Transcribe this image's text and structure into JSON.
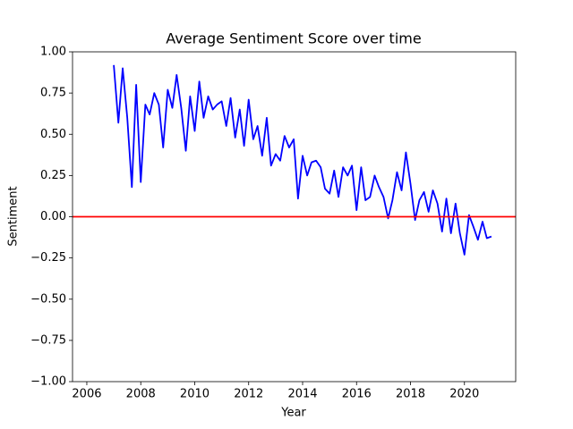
{
  "chart_data": {
    "type": "line",
    "title": "Average Sentiment Score over time",
    "xlabel": "Year",
    "ylabel": "Sentiment",
    "x": [
      2007.0,
      2007.17,
      2007.33,
      2007.5,
      2007.67,
      2007.83,
      2008.0,
      2008.17,
      2008.33,
      2008.5,
      2008.67,
      2008.83,
      2009.0,
      2009.17,
      2009.33,
      2009.5,
      2009.67,
      2009.83,
      2010.0,
      2010.17,
      2010.33,
      2010.5,
      2010.67,
      2010.83,
      2011.0,
      2011.17,
      2011.33,
      2011.5,
      2011.67,
      2011.83,
      2012.0,
      2012.17,
      2012.33,
      2012.5,
      2012.67,
      2012.83,
      2013.0,
      2013.17,
      2013.33,
      2013.5,
      2013.67,
      2013.83,
      2014.0,
      2014.17,
      2014.33,
      2014.5,
      2014.67,
      2014.83,
      2015.0,
      2015.17,
      2015.33,
      2015.5,
      2015.67,
      2015.83,
      2016.0,
      2016.17,
      2016.33,
      2016.5,
      2016.67,
      2016.83,
      2017.0,
      2017.17,
      2017.33,
      2017.5,
      2017.67,
      2017.83,
      2018.0,
      2018.17,
      2018.33,
      2018.5,
      2018.67,
      2018.83,
      2019.0,
      2019.17,
      2019.33,
      2019.5,
      2019.67,
      2019.83,
      2020.0,
      2020.17,
      2020.33,
      2020.5,
      2020.67,
      2020.83,
      2021.0
    ],
    "values": [
      0.92,
      0.57,
      0.9,
      0.6,
      0.18,
      0.8,
      0.21,
      0.68,
      0.62,
      0.75,
      0.68,
      0.42,
      0.77,
      0.66,
      0.86,
      0.66,
      0.4,
      0.73,
      0.52,
      0.82,
      0.6,
      0.73,
      0.65,
      0.68,
      0.7,
      0.55,
      0.72,
      0.48,
      0.65,
      0.43,
      0.71,
      0.47,
      0.55,
      0.37,
      0.6,
      0.31,
      0.38,
      0.34,
      0.49,
      0.42,
      0.47,
      0.11,
      0.37,
      0.25,
      0.33,
      0.34,
      0.3,
      0.17,
      0.14,
      0.28,
      0.12,
      0.3,
      0.25,
      0.31,
      0.04,
      0.3,
      0.1,
      0.12,
      0.25,
      0.18,
      0.12,
      -0.01,
      0.1,
      0.27,
      0.16,
      0.39,
      0.2,
      -0.02,
      0.1,
      0.15,
      0.03,
      0.16,
      0.08,
      -0.09,
      0.11,
      -0.1,
      0.08,
      -0.1,
      -0.23,
      0.01,
      -0.06,
      -0.14,
      -0.03,
      -0.13,
      -0.12
    ],
    "color": "#0000ff",
    "hline": 0,
    "hline_color": "#ff0000",
    "xlim": [
      2005.47,
      2021.9
    ],
    "xticks": [
      2006,
      2008,
      2010,
      2012,
      2014,
      2016,
      2018,
      2020
    ],
    "ylim": [
      -1,
      1
    ],
    "yticks": [
      {
        "value": -1,
        "label": "−1.00"
      },
      {
        "value": -0.75,
        "label": "−0.75"
      },
      {
        "value": -0.5,
        "label": "−0.50"
      },
      {
        "value": -0.25,
        "label": "−0.25"
      },
      {
        "value": 0,
        "label": "0.00"
      },
      {
        "value": 0.25,
        "label": "0.25"
      },
      {
        "value": 0.5,
        "label": "0.50"
      },
      {
        "value": 0.75,
        "label": "0.75"
      },
      {
        "value": 1,
        "label": "1.00"
      }
    ],
    "grid": false
  }
}
